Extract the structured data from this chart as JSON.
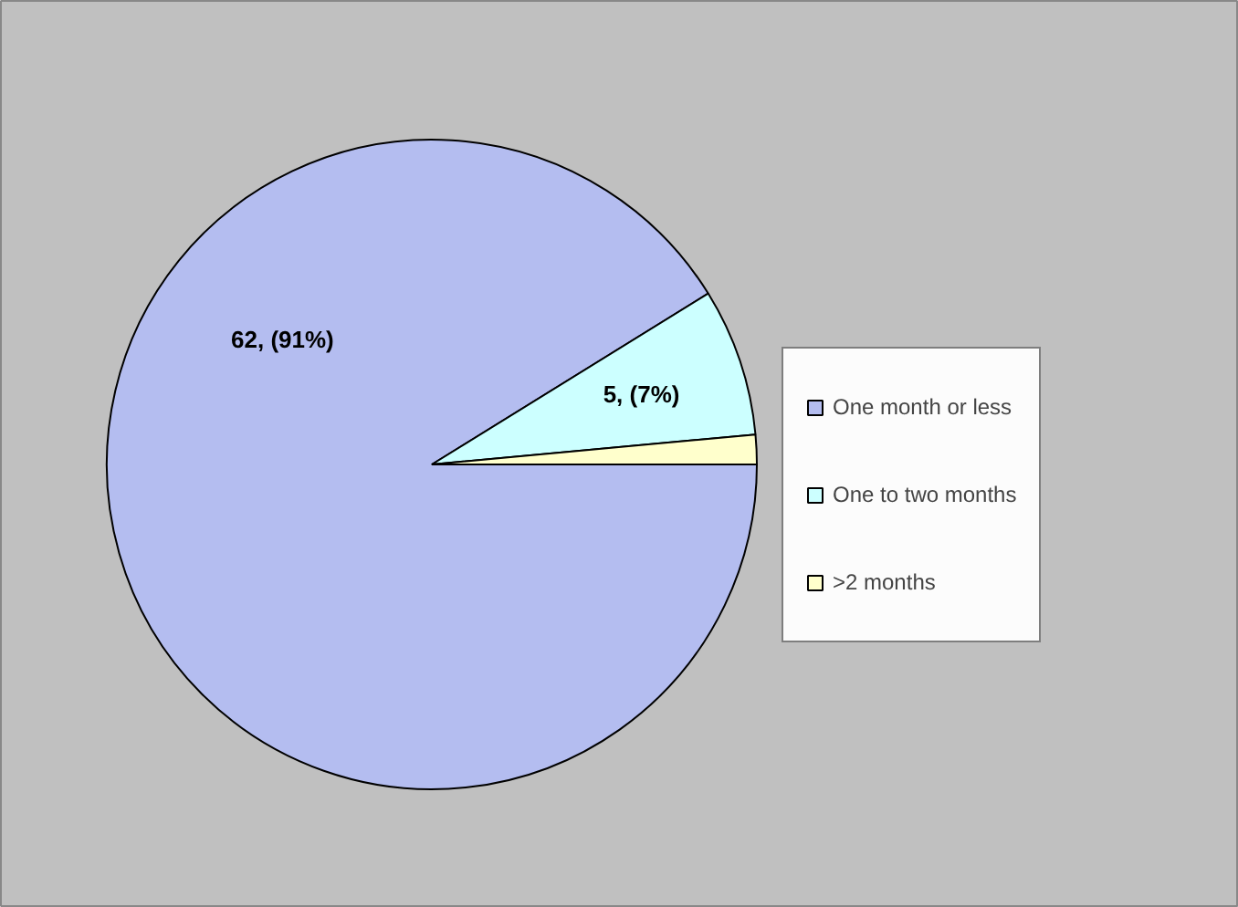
{
  "chart_data": {
    "type": "pie",
    "categories": [
      "One month or less",
      "One to two months",
      ">2 months"
    ],
    "values": [
      62,
      5,
      1
    ],
    "colors": [
      "#b4bdf0",
      "#ccffff",
      "#ffffcc"
    ],
    "value_labels": [
      "62, (91%)",
      "5, (7%)",
      null
    ],
    "legend": "right"
  }
}
